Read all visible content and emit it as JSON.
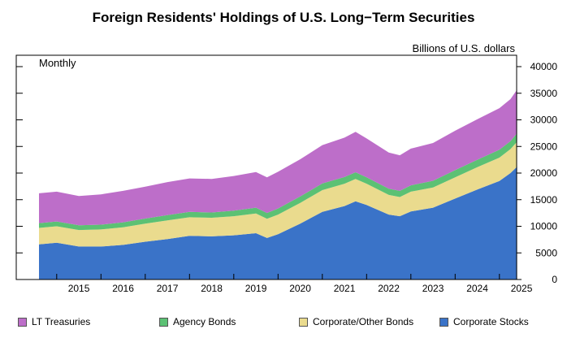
{
  "chart_data": {
    "type": "area",
    "stacked": true,
    "title": "Foreign Residents' Holdings of U.S. Long−Term Securities",
    "ylabel": "Billions of U.S. dollars",
    "annotation": "Monthly",
    "ylim": [
      0,
      40000
    ],
    "y_ticks": [
      "0",
      "5000",
      "10000",
      "15000",
      "20000",
      "25000",
      "30000",
      "35000",
      "40000"
    ],
    "x_ticks": [
      "2015",
      "2016",
      "2017",
      "2018",
      "2019",
      "2020",
      "2021",
      "2022",
      "2023",
      "2024",
      "2025"
    ],
    "x": [
      2014.6,
      2015.0,
      2015.5,
      2016.0,
      2016.5,
      2017.0,
      2017.5,
      2018.0,
      2018.5,
      2019.0,
      2019.5,
      2019.75,
      2020.0,
      2020.5,
      2021.0,
      2021.5,
      2021.75,
      2022.0,
      2022.5,
      2022.75,
      2023.0,
      2023.5,
      2024.0,
      2024.5,
      2025.0,
      2025.25,
      2025.4
    ],
    "series": [
      {
        "name": "Corporate Stocks",
        "color": "#3a73c8",
        "values": [
          6600,
          6900,
          6200,
          6200,
          6500,
          7100,
          7600,
          8200,
          8100,
          8300,
          8700,
          7800,
          8500,
          10500,
          12700,
          13800,
          14700,
          14000,
          12200,
          11900,
          12800,
          13500,
          15200,
          16900,
          18500,
          20000,
          21200
        ]
      },
      {
        "name": "Corporate/Other Bonds",
        "color": "#eadb8e",
        "values": [
          3100,
          3100,
          3100,
          3200,
          3300,
          3400,
          3500,
          3500,
          3500,
          3600,
          3700,
          3600,
          3700,
          3900,
          4100,
          4200,
          4200,
          4000,
          3700,
          3600,
          3700,
          3800,
          4000,
          4200,
          4400,
          4500,
          4700
        ]
      },
      {
        "name": "Agency Bonds",
        "color": "#5cc174",
        "values": [
          900,
          900,
          900,
          900,
          950,
          950,
          1000,
          1000,
          1000,
          1050,
          1100,
          1100,
          1150,
          1200,
          1250,
          1250,
          1250,
          1200,
          1150,
          1150,
          1200,
          1250,
          1350,
          1400,
          1500,
          1500,
          1600
        ]
      },
      {
        "name": "LT Treasuries",
        "color": "#bd6ec9",
        "values": [
          5600,
          5600,
          5500,
          5700,
          5900,
          6000,
          6200,
          6300,
          6300,
          6500,
          6700,
          6700,
          6900,
          7000,
          7200,
          7400,
          7600,
          7300,
          6800,
          6700,
          6900,
          7100,
          7400,
          7600,
          7800,
          7900,
          8200
        ]
      }
    ],
    "legend": [
      "LT Treasuries",
      "Agency Bonds",
      "Corporate/Other Bonds",
      "Corporate Stocks"
    ],
    "grid": false
  },
  "legend_items": [
    {
      "label": "LT Treasuries",
      "color": "#bd6ec9"
    },
    {
      "label": "Agency Bonds",
      "color": "#5cc174"
    },
    {
      "label": "Corporate/Other Bonds",
      "color": "#eadb8e"
    },
    {
      "label": "Corporate Stocks",
      "color": "#3a73c8"
    }
  ]
}
